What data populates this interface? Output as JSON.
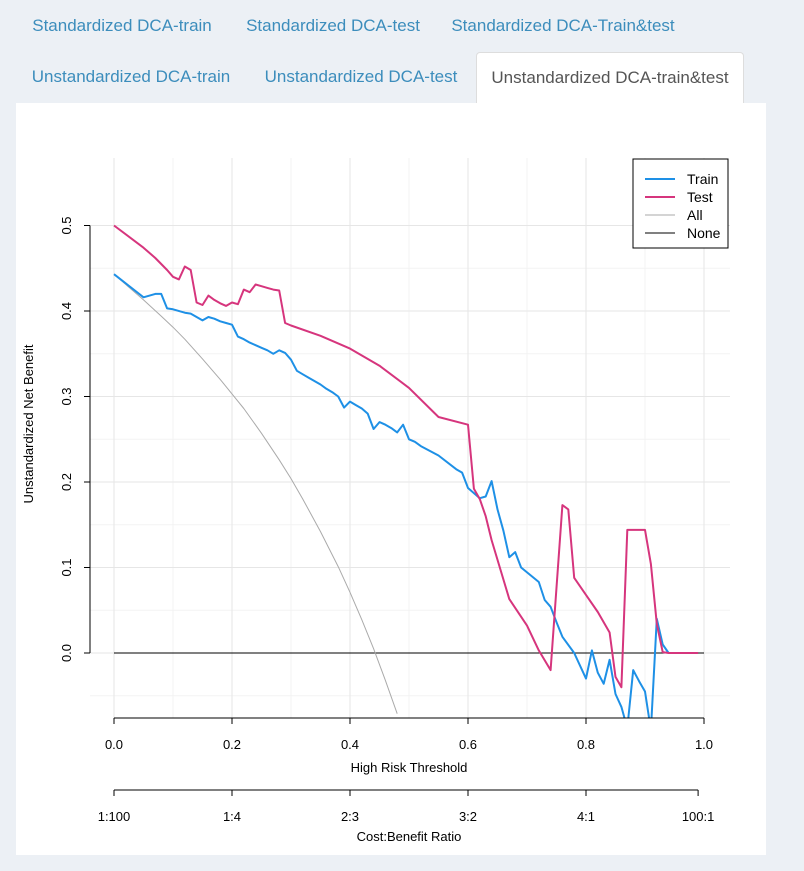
{
  "tabs": {
    "row1": [
      {
        "label": "Standardized DCA-train"
      },
      {
        "label": "Standardized DCA-test"
      },
      {
        "label": "Standardized DCA-Train&test"
      }
    ],
    "row2": [
      {
        "label": "Unstandardized DCA-train"
      },
      {
        "label": "Unstandardized DCA-test"
      },
      {
        "label": "Unstandardized DCA-train&test"
      }
    ]
  },
  "chart_data": {
    "type": "line",
    "title": "",
    "xlabel": "High Risk Threshold",
    "ylabel": "Unstandardized Net Benefit",
    "xlim": [
      0,
      1
    ],
    "ylim": [
      -0.075,
      0.5
    ],
    "x_ticks": [
      "0.0",
      "0.2",
      "0.4",
      "0.6",
      "0.8",
      "1.0"
    ],
    "y_ticks": [
      "0.0",
      "0.1",
      "0.2",
      "0.3",
      "0.4",
      "0.5"
    ],
    "grid": true,
    "legend_position": "top-right",
    "secondary_axis": {
      "label": "Cost:Benefit Ratio",
      "ticks": [
        {
          "label": "1:100",
          "x": 0.0
        },
        {
          "label": "1:4",
          "x": 0.2
        },
        {
          "label": "2:3",
          "x": 0.4
        },
        {
          "label": "3:2",
          "x": 0.6
        },
        {
          "label": "4:1",
          "x": 0.8
        },
        {
          "label": "100:1",
          "x": 0.99
        }
      ]
    },
    "series": [
      {
        "name": "Train",
        "color": "#1e90e6",
        "width": 2,
        "x": [
          0,
          0.05,
          0.07,
          0.08,
          0.09,
          0.1,
          0.12,
          0.13,
          0.14,
          0.15,
          0.16,
          0.17,
          0.18,
          0.19,
          0.2,
          0.21,
          0.22,
          0.23,
          0.24,
          0.25,
          0.26,
          0.27,
          0.28,
          0.29,
          0.3,
          0.31,
          0.32,
          0.33,
          0.34,
          0.35,
          0.36,
          0.37,
          0.38,
          0.39,
          0.4,
          0.41,
          0.42,
          0.43,
          0.44,
          0.45,
          0.46,
          0.47,
          0.48,
          0.49,
          0.5,
          0.51,
          0.52,
          0.55,
          0.58,
          0.59,
          0.6,
          0.62,
          0.63,
          0.64,
          0.65,
          0.66,
          0.67,
          0.68,
          0.69,
          0.72,
          0.73,
          0.74,
          0.75,
          0.76,
          0.78,
          0.8,
          0.81,
          0.82,
          0.83,
          0.84,
          0.85,
          0.86,
          0.87,
          0.88,
          0.89,
          0.9,
          0.91,
          0.92,
          0.93,
          0.94
        ],
        "y": [
          0.443,
          0.416,
          0.42,
          0.42,
          0.403,
          0.402,
          0.398,
          0.397,
          0.393,
          0.389,
          0.393,
          0.391,
          0.388,
          0.386,
          0.384,
          0.37,
          0.367,
          0.363,
          0.36,
          0.357,
          0.354,
          0.35,
          0.354,
          0.351,
          0.343,
          0.33,
          0.326,
          0.322,
          0.318,
          0.314,
          0.309,
          0.305,
          0.3,
          0.287,
          0.294,
          0.29,
          0.286,
          0.28,
          0.262,
          0.27,
          0.267,
          0.263,
          0.258,
          0.267,
          0.25,
          0.247,
          0.242,
          0.231,
          0.215,
          0.211,
          0.193,
          0.181,
          0.183,
          0.201,
          0.168,
          0.143,
          0.112,
          0.118,
          0.1,
          0.083,
          0.062,
          0.054,
          0.036,
          0.019,
          0.0,
          -0.03,
          0.003,
          -0.023,
          -0.036,
          -0.008,
          -0.048,
          -0.063,
          -0.088,
          -0.02,
          -0.033,
          -0.045,
          -0.09,
          0.04,
          0.01,
          0.0
        ]
      },
      {
        "name": "Test",
        "color": "#d6357d",
        "width": 2,
        "x": [
          0,
          0.05,
          0.07,
          0.09,
          0.1,
          0.11,
          0.12,
          0.13,
          0.14,
          0.15,
          0.16,
          0.17,
          0.18,
          0.19,
          0.2,
          0.21,
          0.22,
          0.23,
          0.24,
          0.25,
          0.26,
          0.27,
          0.28,
          0.29,
          0.3,
          0.35,
          0.4,
          0.45,
          0.5,
          0.55,
          0.6,
          0.61,
          0.62,
          0.63,
          0.64,
          0.67,
          0.7,
          0.72,
          0.74,
          0.76,
          0.77,
          0.78,
          0.8,
          0.82,
          0.84,
          0.85,
          0.86,
          0.87,
          0.88,
          0.89,
          0.9,
          0.91,
          0.92,
          0.93,
          0.94,
          0.95,
          0.96,
          0.97,
          0.98,
          0.99
        ],
        "y": [
          0.5,
          0.474,
          0.462,
          0.448,
          0.44,
          0.437,
          0.452,
          0.448,
          0.41,
          0.407,
          0.418,
          0.413,
          0.409,
          0.406,
          0.41,
          0.408,
          0.425,
          0.422,
          0.431,
          0.429,
          0.427,
          0.425,
          0.424,
          0.386,
          0.383,
          0.371,
          0.356,
          0.336,
          0.31,
          0.276,
          0.267,
          0.192,
          0.18,
          0.16,
          0.132,
          0.063,
          0.032,
          0.003,
          -0.02,
          0.173,
          0.168,
          0.088,
          0.068,
          0.048,
          0.024,
          -0.028,
          -0.04,
          0.144,
          0.144,
          0.144,
          0.144,
          0.104,
          0.034,
          0.001,
          0.0,
          0.0,
          0.0,
          0.0,
          0.0,
          0.0
        ]
      },
      {
        "name": "All",
        "color": "#aaaaaa",
        "width": 1,
        "x": [
          0,
          0.02,
          0.05,
          0.08,
          0.1,
          0.12,
          0.15,
          0.18,
          0.2,
          0.22,
          0.25,
          0.28,
          0.3,
          0.32,
          0.35,
          0.38,
          0.4,
          0.42,
          0.44,
          0.46,
          0.48
        ],
        "y": [
          0.443,
          0.431,
          0.413,
          0.394,
          0.381,
          0.367,
          0.344,
          0.32,
          0.303,
          0.286,
          0.257,
          0.226,
          0.204,
          0.18,
          0.142,
          0.101,
          0.071,
          0.039,
          0.005,
          -0.032,
          -0.071
        ]
      },
      {
        "name": "None",
        "color": "#000000",
        "width": 1,
        "x": [
          0,
          1
        ],
        "y": [
          0,
          0
        ]
      }
    ]
  }
}
